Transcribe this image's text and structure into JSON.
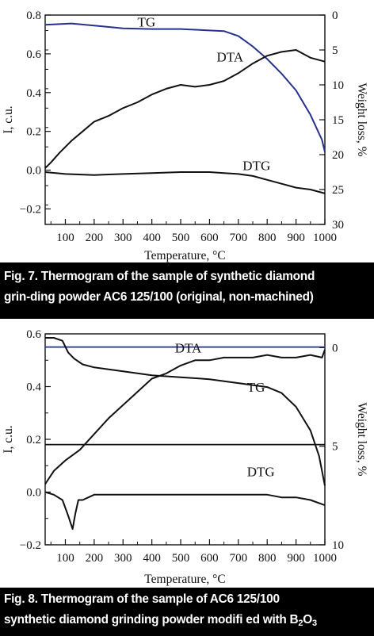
{
  "figures": [
    {
      "caption_line1": "Fig. 7. Thermogram of the sample of synthetic diamond",
      "caption_line2": "grin-ding powder AC6 125/100 (original, non-machined)"
    },
    {
      "caption_line1": "Fig. 8. Thermogram of the sample of AC6 125/100",
      "caption_line2_pre": "synthetic diamond grinding powder modifi ed with B",
      "caption_line2_sub1": "2",
      "caption_line2_mid": "O",
      "caption_line2_sub2": "3"
    }
  ],
  "chart_data": [
    {
      "type": "line",
      "xlabel": "Temperature, °C",
      "ylabel": "I, c.u.",
      "y2label": "Weight loss, %",
      "xlim": [
        30,
        1000
      ],
      "ylim": [
        -0.28,
        0.8
      ],
      "y2lim": [
        30,
        0
      ],
      "y2_inverted": true,
      "x_ticks": [
        100,
        200,
        300,
        400,
        500,
        600,
        700,
        800,
        900,
        1000
      ],
      "y_ticks": [
        0.8,
        0.6,
        0.4,
        0.2,
        0.0,
        -0.2
      ],
      "y_tick_labels": [
        "0.8",
        "0.6",
        "0.4",
        "0.2",
        "0.0",
        "−0.2"
      ],
      "y2_ticks": [
        0,
        5,
        10,
        15,
        20,
        25,
        30
      ],
      "grid": false,
      "annotations": [
        {
          "text": "TG",
          "x": 350,
          "y": 0.74
        },
        {
          "text": "DTA",
          "x": 625,
          "y": 0.56
        },
        {
          "text": "DTG",
          "x": 715,
          "y": 0.0
        }
      ],
      "series": [
        {
          "name": "TG",
          "axis": "right",
          "color": "#25318c",
          "x": [
            30,
            80,
            120,
            200,
            300,
            400,
            500,
            600,
            650,
            700,
            750,
            800,
            850,
            900,
            950,
            990,
            1000
          ],
          "y": [
            1.4,
            1.3,
            1.2,
            1.5,
            1.9,
            2.0,
            2.0,
            2.2,
            2.3,
            3.0,
            4.5,
            6.3,
            8.4,
            10.8,
            14.3,
            17.9,
            19.6
          ]
        },
        {
          "name": "DTA",
          "axis": "left",
          "color": "#111111",
          "x": [
            30,
            50,
            80,
            120,
            160,
            200,
            250,
            300,
            350,
            400,
            450,
            500,
            550,
            600,
            650,
            700,
            750,
            800,
            850,
            900,
            950,
            1000
          ],
          "y": [
            0.01,
            0.04,
            0.09,
            0.15,
            0.2,
            0.25,
            0.28,
            0.32,
            0.35,
            0.39,
            0.42,
            0.44,
            0.43,
            0.44,
            0.46,
            0.5,
            0.55,
            0.59,
            0.61,
            0.62,
            0.58,
            0.56
          ]
        },
        {
          "name": "DTG",
          "axis": "left",
          "color": "#111111",
          "x": [
            30,
            100,
            200,
            300,
            400,
            500,
            600,
            650,
            700,
            750,
            800,
            850,
            900,
            950,
            1000
          ],
          "y": [
            -0.01,
            -0.02,
            -0.025,
            -0.02,
            -0.015,
            -0.01,
            -0.01,
            -0.015,
            -0.02,
            -0.03,
            -0.05,
            -0.07,
            -0.09,
            -0.1,
            -0.12
          ]
        }
      ]
    },
    {
      "type": "line",
      "xlabel": "Temperature, °C",
      "ylabel": "I, c.u.",
      "y2label": "Weight loss, %",
      "xlim": [
        30,
        1000
      ],
      "ylim": [
        -0.2,
        0.6
      ],
      "y2lim": [
        10,
        -0.7
      ],
      "y2_inverted": true,
      "x_ticks": [
        100,
        200,
        300,
        400,
        500,
        600,
        700,
        800,
        900,
        1000
      ],
      "y_ticks": [
        0.6,
        0.4,
        0.2,
        0.0,
        -0.2
      ],
      "y_tick_labels": [
        "0.6",
        "0.4",
        "0.2",
        "0.0",
        "−0.2"
      ],
      "y2_ticks": [
        0,
        5,
        10
      ],
      "grid": false,
      "reference_lines": [
        {
          "axis": "left",
          "y": 0.55,
          "color": "#25318c"
        },
        {
          "axis": "left",
          "y": 0.18,
          "color": "#111111"
        }
      ],
      "annotations": [
        {
          "text": "DTA",
          "x": 480,
          "y": 0.53
        },
        {
          "text": "TG",
          "x": 730,
          "y": 0.38
        },
        {
          "text": "DTG",
          "x": 730,
          "y": 0.06
        }
      ],
      "series": [
        {
          "name": "DTA",
          "axis": "left",
          "color": "#111111",
          "x": [
            30,
            60,
            100,
            150,
            200,
            250,
            300,
            350,
            400,
            450,
            500,
            550,
            600,
            650,
            700,
            750,
            800,
            850,
            900,
            950,
            990,
            1000
          ],
          "y": [
            0.03,
            0.08,
            0.12,
            0.16,
            0.22,
            0.28,
            0.33,
            0.38,
            0.43,
            0.45,
            0.48,
            0.5,
            0.5,
            0.51,
            0.51,
            0.51,
            0.52,
            0.51,
            0.51,
            0.52,
            0.51,
            0.54
          ]
        },
        {
          "name": "TG",
          "axis": "right",
          "color": "#111111",
          "x": [
            30,
            60,
            90,
            110,
            130,
            160,
            200,
            250,
            300,
            400,
            500,
            600,
            700,
            800,
            850,
            900,
            950,
            980,
            1000
          ],
          "y": [
            -0.5,
            -0.5,
            -0.35,
            0.25,
            0.55,
            0.85,
            1.0,
            1.1,
            1.2,
            1.4,
            1.5,
            1.6,
            1.8,
            2.0,
            2.3,
            3.0,
            4.2,
            5.5,
            7.0
          ]
        },
        {
          "name": "DTG",
          "axis": "left",
          "color": "#111111",
          "x": [
            30,
            60,
            90,
            110,
            125,
            135,
            145,
            160,
            180,
            200,
            250,
            300,
            400,
            500,
            600,
            700,
            800,
            850,
            900,
            950,
            1000
          ],
          "y": [
            0.0,
            -0.01,
            -0.03,
            -0.09,
            -0.14,
            -0.08,
            -0.03,
            -0.03,
            -0.02,
            -0.01,
            -0.01,
            -0.01,
            -0.01,
            -0.01,
            -0.01,
            -0.01,
            -0.01,
            -0.02,
            -0.02,
            -0.03,
            -0.05
          ]
        }
      ]
    }
  ]
}
